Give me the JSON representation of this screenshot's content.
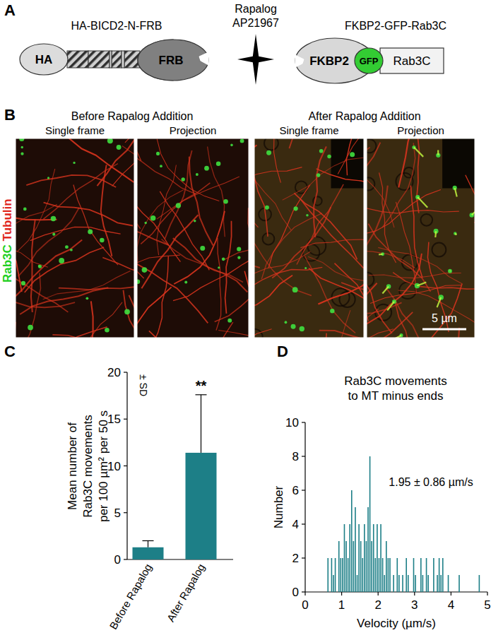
{
  "panel_labels": [
    "A",
    "B",
    "C",
    "D"
  ],
  "panel_a": {
    "construct_1": {
      "name": "HA-BICD2-N-FRB",
      "domains": [
        "HA",
        "FRB"
      ]
    },
    "linker": {
      "name": "Rapalog",
      "compound": "AP21967"
    },
    "construct_2": {
      "name": "FKBP2-GFP-Rab3C",
      "domains": [
        "FKBP2",
        "GFP",
        "Rab3C"
      ]
    }
  },
  "panel_b": {
    "conditions": [
      {
        "title": "Before Rapalog Addition",
        "views": [
          "Single frame",
          "Projection"
        ]
      },
      {
        "title": "After Rapalog Addition",
        "views": [
          "Single frame",
          "Projection"
        ]
      }
    ],
    "channels": [
      {
        "name": "Rab3C",
        "color": "#22d022"
      },
      {
        "name": "Tubulin",
        "color": "#e0281e"
      }
    ],
    "scale_bar": "5 µm"
  },
  "chart_data": [
    {
      "type": "bar",
      "categories": [
        "Before Rapalog",
        "After Rapalog"
      ],
      "values": [
        1.3,
        11.4
      ],
      "errors": [
        0.7,
        6.2
      ],
      "error_label": "± SD",
      "significance": {
        "category": 1,
        "text": "**"
      },
      "color": "#1d7f87",
      "ylim": [
        0,
        20
      ],
      "yticks": [
        0,
        5,
        10,
        15,
        20
      ],
      "y_label": [
        "Mean number of",
        "Rab3C movements",
        "per 100 µm² per 50 s"
      ]
    },
    {
      "type": "histogram",
      "title": [
        "Rab3C movements",
        "to MT minus ends"
      ],
      "annotation": "1.95 ± 0.86 µm/s",
      "bins": [
        0.6,
        0.65,
        0.7,
        0.75,
        0.8,
        0.85,
        0.9,
        0.95,
        1.0,
        1.05,
        1.1,
        1.15,
        1.2,
        1.25,
        1.3,
        1.35,
        1.4,
        1.45,
        1.5,
        1.55,
        1.6,
        1.65,
        1.7,
        1.75,
        1.8,
        1.85,
        1.9,
        1.95,
        2.0,
        2.05,
        2.1,
        2.15,
        2.2,
        2.25,
        2.3,
        2.35,
        2.4,
        2.45,
        2.5,
        2.55,
        2.6,
        2.65,
        2.7,
        2.75,
        2.8,
        2.85,
        2.9,
        2.95,
        3.0,
        3.05,
        3.1,
        3.15,
        3.2,
        3.25,
        3.3,
        3.35,
        3.4,
        3.45,
        3.5,
        3.55,
        3.6,
        3.65,
        3.7,
        3.75,
        3.8,
        3.85,
        3.9,
        3.95,
        4.0,
        4.05,
        4.1,
        4.15,
        4.2,
        4.25,
        4.3,
        4.35,
        4.4,
        4.45,
        4.5,
        4.55,
        4.6,
        4.65,
        4.7,
        4.75,
        4.8,
        4.85
      ],
      "values": [
        2,
        0,
        2,
        1,
        2,
        0,
        3,
        2,
        2,
        4,
        3,
        2,
        4,
        6,
        3,
        5,
        1,
        4,
        3,
        2,
        4,
        3,
        5,
        8,
        3,
        4,
        2,
        4,
        2,
        4,
        2,
        1,
        3,
        2,
        2,
        0,
        1,
        0,
        2,
        1,
        0,
        1,
        0,
        2,
        1,
        0,
        0,
        2,
        1,
        0,
        0,
        2,
        1,
        0,
        2,
        1,
        0,
        0,
        2,
        0,
        1,
        2,
        1,
        2,
        0,
        0,
        1,
        0,
        0,
        0,
        0,
        0,
        1,
        0,
        0,
        0,
        0,
        0,
        0,
        0,
        0,
        0,
        0,
        1,
        0
      ],
      "color": "#1d7f87",
      "xlim": [
        0,
        5
      ],
      "xticks": [
        0,
        1,
        2,
        3,
        4,
        5
      ],
      "ylim": [
        0,
        10
      ],
      "yticks": [
        0,
        2,
        4,
        6,
        8,
        10
      ],
      "x_label": "Velocity (µm/s)",
      "y_label": "Number"
    }
  ]
}
